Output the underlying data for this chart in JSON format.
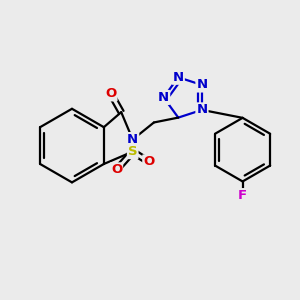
{
  "bg_color": "#ebebeb",
  "bond_color": "#000000",
  "line_width": 1.6,
  "atom_colors": {
    "N": "#0000cc",
    "O": "#dd0000",
    "S": "#bbbb00",
    "F": "#cc00cc",
    "C": "#000000"
  },
  "font_size": 9.5
}
